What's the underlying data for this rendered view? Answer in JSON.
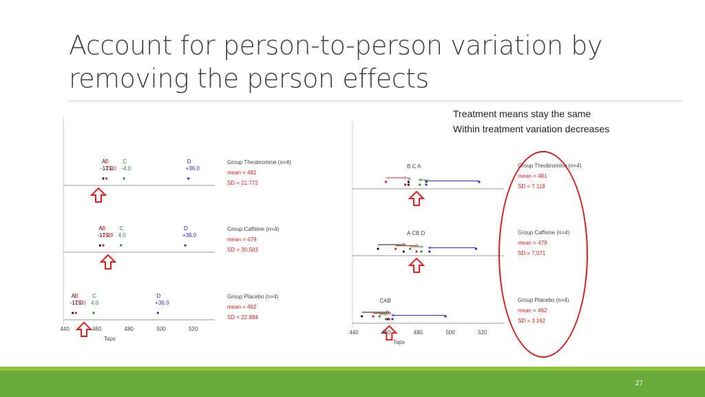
{
  "slide": {
    "title_line1": "Account for person-to-person variation by",
    "title_line2": "removing the person effects",
    "note_line1": "Treatment means stay the same",
    "note_line2": "Within treatment variation decreases",
    "page_number": "27"
  },
  "colors": {
    "title": "#404040",
    "red": "#e02020",
    "green": "#2a8a2a",
    "blue": "#2b2bd8",
    "black": "#111111",
    "footer": "#6aaa3a",
    "oval": "#d42020"
  },
  "chart_data": [
    {
      "type": "scatter",
      "name": "before",
      "xlabel": "Taps",
      "xlim": [
        440,
        530
      ],
      "ticks": [
        440,
        460,
        480,
        500,
        520
      ],
      "tick_labels": [
        "440",
        "460",
        "480",
        "500",
        "520"
      ],
      "groups": [
        {
          "title": "Group Theobromine (n=4)",
          "mean": "mean = 481",
          "sd": "SD = 21.772",
          "arrow_x": 461,
          "points": [
            {
              "letter": "B",
              "value": 466,
              "delta": "-15.0",
              "color": "red"
            },
            {
              "letter": "A",
              "value": 464,
              "delta": "-17.0",
              "color": "black"
            },
            {
              "letter": "C",
              "value": 477,
              "delta": "-4.0",
              "color": "green"
            },
            {
              "letter": "D",
              "value": 517,
              "delta": "+36.0",
              "color": "blue"
            }
          ]
        },
        {
          "title": "Group Caffeine (n=4)",
          "mean": "mean = 479",
          "sd": "SD = 30.583",
          "arrow_x": 467,
          "points": [
            {
              "letter": "A",
              "value": 462,
              "delta": "-17.0",
              "color": "black"
            },
            {
              "letter": "B",
              "value": 464,
              "delta": "-15.9",
              "color": "red"
            },
            {
              "letter": "C",
              "value": 475,
              "delta": "4.0",
              "color": "green"
            },
            {
              "letter": "D",
              "value": 515,
              "delta": "+36.0",
              "color": "blue"
            }
          ]
        },
        {
          "title": "Group Placebo (n=4)",
          "mean": "mean = 462",
          "sd": "SD = 22.984",
          "arrow_x": 452,
          "points": [
            {
              "letter": "A",
              "value": 445,
              "delta": "-17.0",
              "color": "black"
            },
            {
              "letter": "B",
              "value": 447,
              "delta": "-15.0",
              "color": "red"
            },
            {
              "letter": "C",
              "value": 458,
              "delta": "4.0",
              "color": "green"
            },
            {
              "letter": "D",
              "value": 498,
              "delta": "+36.0",
              "color": "blue"
            }
          ]
        }
      ]
    },
    {
      "type": "scatter",
      "name": "after",
      "xlabel": "Taps",
      "xlim": [
        440,
        530
      ],
      "ticks": [
        440,
        460,
        480,
        500,
        520
      ],
      "tick_labels": [
        "440",
        "460",
        "480",
        "500",
        "520"
      ],
      "groups": [
        {
          "title": "Group Theobromine (n=4)",
          "mean": "mean = 481",
          "sd": "SD = 7.118",
          "arrow_x": 479,
          "letters": "B  C A",
          "points": [
            {
              "letter": "B",
              "value": 472,
              "color": "red",
              "from": 460
            },
            {
              "letter": "A",
              "value": 474,
              "color": "black",
              "from": 474
            },
            {
              "letter": "C",
              "value": 481,
              "color": "green",
              "from": 485
            },
            {
              "letter": "D",
              "value": 485,
              "color": "blue",
              "from": 518
            }
          ]
        },
        {
          "title": "Group Caffeine (n=4)",
          "mean": "mean = 479",
          "sd": "SD = 7.071",
          "arrow_x": 479,
          "letters": "A  CB  D",
          "points": [
            {
              "letter": "A",
              "value": 471,
              "color": "black",
              "from": 455
            },
            {
              "letter": "B",
              "value": 479,
              "color": "red",
              "from": 466
            },
            {
              "letter": "C",
              "value": 482,
              "color": "green",
              "from": 475
            },
            {
              "letter": "D",
              "value": 487,
              "color": "blue",
              "from": 516
            }
          ]
        },
        {
          "title": "Group Placebo (n=4)",
          "mean": "mean = 462",
          "sd": "SD = 3.162",
          "arrow_x": 462,
          "letters": "CAB",
          "points": [
            {
              "letter": "A",
              "value": 461,
              "color": "black",
              "from": 445
            },
            {
              "letter": "B",
              "value": 462,
              "color": "red",
              "from": 452
            },
            {
              "letter": "C",
              "value": 460,
              "color": "green",
              "from": 456
            },
            {
              "letter": "D",
              "value": 464,
              "color": "blue",
              "from": 497
            }
          ]
        }
      ]
    }
  ]
}
